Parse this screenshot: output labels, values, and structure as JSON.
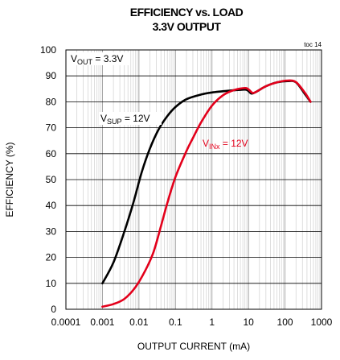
{
  "chart_data": {
    "type": "line",
    "title": "EFFICIENCY vs. LOAD",
    "subtitle": "3.3V OUTPUT",
    "note": "toc 14",
    "xlabel": "OUTPUT CURRENT (mA)",
    "ylabel": "EFFICIENCY (%)",
    "xscale": "log",
    "xlim": [
      0.0001,
      1000
    ],
    "ylim": [
      0,
      100
    ],
    "xticks": [
      "0.0001",
      "0.001",
      "0.01",
      "0.1",
      "1",
      "10",
      "100",
      "1000"
    ],
    "yticks": [
      "0",
      "10",
      "20",
      "30",
      "40",
      "50",
      "60",
      "70",
      "80",
      "90",
      "100"
    ],
    "grid": true,
    "annotations": {
      "vout": {
        "main": "V",
        "sub": "OUT",
        "rest": " = 3.3V",
        "color": "#000000"
      },
      "vsup": {
        "main": "V",
        "sub": "SUP",
        "rest": " = 12V",
        "color": "#000000"
      },
      "vinx": {
        "main": "V",
        "sub": "INx",
        "rest": " = 12V",
        "color": "#e3001b"
      }
    },
    "series": [
      {
        "color": "#000000",
        "label_ref": "vsup",
        "points": [
          [
            0.001,
            10
          ],
          [
            0.002,
            18
          ],
          [
            0.004,
            30
          ],
          [
            0.007,
            41
          ],
          [
            0.012,
            53
          ],
          [
            0.02,
            62
          ],
          [
            0.035,
            69.5
          ],
          [
            0.06,
            74.5
          ],
          [
            0.1,
            78
          ],
          [
            0.2,
            81
          ],
          [
            0.5,
            82.8
          ],
          [
            1,
            83.6
          ],
          [
            3,
            84.3
          ],
          [
            6,
            84.6
          ],
          [
            9,
            84.6
          ],
          [
            12,
            83.2
          ],
          [
            16,
            83.8
          ],
          [
            30,
            86
          ],
          [
            60,
            87.5
          ],
          [
            120,
            88
          ],
          [
            200,
            87.5
          ],
          [
            350,
            83
          ],
          [
            500,
            80
          ]
        ]
      },
      {
        "color": "#e3001b",
        "label_ref": "vinx",
        "points": [
          [
            0.001,
            1
          ],
          [
            0.002,
            2
          ],
          [
            0.004,
            4
          ],
          [
            0.008,
            8.5
          ],
          [
            0.015,
            15
          ],
          [
            0.025,
            22
          ],
          [
            0.04,
            32
          ],
          [
            0.06,
            41
          ],
          [
            0.1,
            51
          ],
          [
            0.2,
            61
          ],
          [
            0.3,
            66
          ],
          [
            0.5,
            72
          ],
          [
            1,
            78.5
          ],
          [
            2,
            82.5
          ],
          [
            4,
            84.5
          ],
          [
            8,
            85.3
          ],
          [
            10,
            84.8
          ],
          [
            13,
            83.4
          ],
          [
            17,
            84
          ],
          [
            30,
            86
          ],
          [
            60,
            87.5
          ],
          [
            120,
            88.2
          ],
          [
            200,
            87.6
          ],
          [
            350,
            83.5
          ],
          [
            500,
            80
          ]
        ]
      }
    ]
  }
}
